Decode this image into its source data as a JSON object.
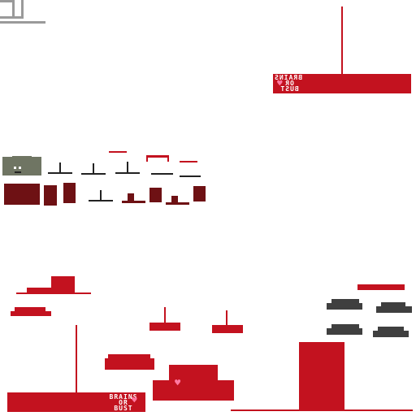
{
  "sprite_sheet": {
    "logo": {
      "line1": "BRAINS",
      "line2": "OR",
      "line3": "BUST",
      "heart_icon": "heart-icon"
    },
    "colors": {
      "accent_red": "#c3121f",
      "dark_red": "#6e1114",
      "zombie_green": "#6f7563",
      "shadow_gray": "#3f3f3f",
      "heart_pink": "#ff7aa2"
    }
  }
}
